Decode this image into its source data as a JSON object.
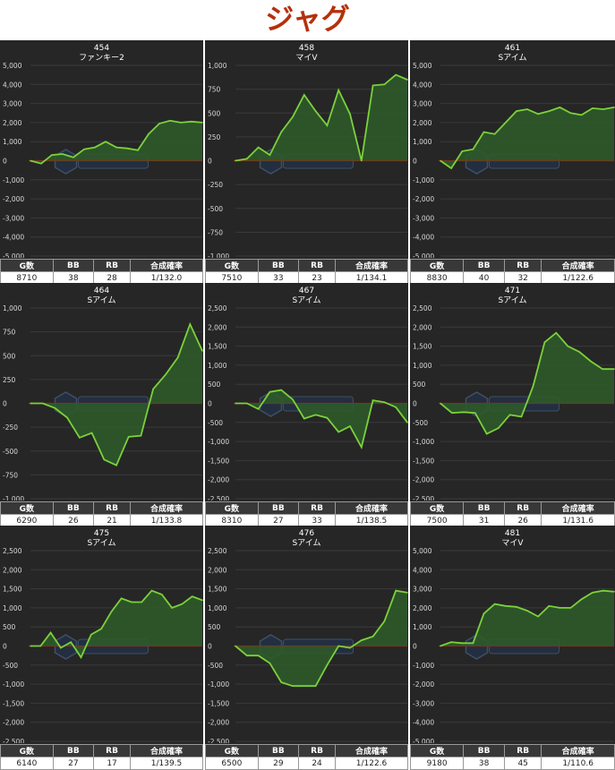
{
  "page": {
    "title": "ジャグ"
  },
  "table_headers": [
    "G数",
    "BB",
    "RB",
    "合成確率"
  ],
  "colors": {
    "line": "#7bd23a",
    "fill": "#2f5a2a",
    "zero": "#a32014",
    "grid": "#3a3a3a",
    "panel_bg": "#262626"
  },
  "chart_data": [
    {
      "type": "area",
      "title": "454",
      "subtitle": "ファンキー2",
      "ylim": [
        -5000,
        5000
      ],
      "yticks": [
        5000,
        4000,
        3000,
        2000,
        1000,
        0,
        -1000,
        -2000,
        -3000,
        -4000,
        -5000
      ],
      "x": [
        0,
        1,
        2,
        3,
        4,
        5,
        6,
        7,
        8,
        9,
        10,
        11,
        12,
        13,
        14,
        15,
        16
      ],
      "values": [
        0,
        -150,
        300,
        350,
        180,
        600,
        700,
        1000,
        700,
        650,
        550,
        1400,
        1950,
        2100,
        2000,
        2050,
        2000
      ],
      "stats": [
        "8710",
        "38",
        "28",
        "1/132.0"
      ]
    },
    {
      "type": "area",
      "title": "458",
      "subtitle": "マイV",
      "ylim": [
        -1000,
        1000
      ],
      "yticks": [
        1000,
        750,
        500,
        250,
        0,
        -250,
        -500,
        -750,
        -1000
      ],
      "x": [
        0,
        1,
        2,
        3,
        4,
        5,
        6,
        7,
        8,
        9,
        10,
        11,
        12,
        13,
        14,
        15
      ],
      "values": [
        0,
        20,
        140,
        60,
        300,
        460,
        690,
        520,
        370,
        740,
        490,
        0,
        790,
        800,
        900,
        850
      ],
      "stats": [
        "7510",
        "33",
        "23",
        "1/134.1"
      ]
    },
    {
      "type": "area",
      "title": "461",
      "subtitle": "Sアイム",
      "ylim": [
        -5000,
        5000
      ],
      "yticks": [
        5000,
        4000,
        3000,
        2000,
        1000,
        0,
        -1000,
        -2000,
        -3000,
        -4000,
        -5000
      ],
      "x": [
        0,
        1,
        2,
        3,
        4,
        5,
        6,
        7,
        8,
        9,
        10,
        11,
        12,
        13,
        14,
        15,
        16
      ],
      "values": [
        0,
        -400,
        500,
        600,
        1500,
        1400,
        2000,
        2600,
        2700,
        2450,
        2600,
        2800,
        2500,
        2400,
        2750,
        2700,
        2800
      ],
      "stats": [
        "8830",
        "40",
        "32",
        "1/122.6"
      ]
    },
    {
      "type": "area",
      "title": "464",
      "subtitle": "Sアイム",
      "ylim": [
        -1000,
        1000
      ],
      "yticks": [
        1000,
        750,
        500,
        250,
        0,
        -250,
        -500,
        -750,
        -1000
      ],
      "x": [
        0,
        1,
        2,
        3,
        4,
        5,
        6,
        7,
        8,
        9,
        10,
        11,
        12,
        13,
        14
      ],
      "values": [
        0,
        0,
        -50,
        -150,
        -360,
        -310,
        -590,
        -650,
        -350,
        -340,
        150,
        300,
        480,
        830,
        550
      ],
      "stats": [
        "6290",
        "26",
        "21",
        "1/133.8"
      ]
    },
    {
      "type": "area",
      "title": "467",
      "subtitle": "Sアイム",
      "ylim": [
        -2500,
        2500
      ],
      "yticks": [
        2500,
        2000,
        1500,
        1000,
        500,
        0,
        -500,
        -1000,
        -1500,
        -2000,
        -2500
      ],
      "x": [
        0,
        1,
        2,
        3,
        4,
        5,
        6,
        7,
        8,
        9,
        10,
        11,
        12,
        13,
        14,
        15
      ],
      "values": [
        0,
        0,
        -150,
        300,
        350,
        100,
        -400,
        -300,
        -380,
        -750,
        -600,
        -1150,
        80,
        30,
        -100,
        -500
      ],
      "stats": [
        "8310",
        "27",
        "33",
        "1/138.5"
      ]
    },
    {
      "type": "area",
      "title": "471",
      "subtitle": "Sアイム",
      "ylim": [
        -2500,
        2500
      ],
      "yticks": [
        2500,
        2000,
        1500,
        1000,
        500,
        0,
        -500,
        -1000,
        -1500,
        -2000,
        -2500
      ],
      "x": [
        0,
        1,
        2,
        3,
        4,
        5,
        6,
        7,
        8,
        9,
        10,
        11,
        12,
        13,
        14,
        15
      ],
      "values": [
        0,
        -250,
        -230,
        -250,
        -800,
        -650,
        -300,
        -350,
        450,
        1600,
        1850,
        1500,
        1350,
        1100,
        900,
        900
      ],
      "stats": [
        "7500",
        "31",
        "26",
        "1/131.6"
      ]
    },
    {
      "type": "area",
      "title": "475",
      "subtitle": "Sアイム",
      "ylim": [
        -2500,
        2500
      ],
      "yticks": [
        2500,
        2000,
        1500,
        1000,
        500,
        0,
        -500,
        -1000,
        -1500,
        -2000,
        -2500
      ],
      "x": [
        0,
        1,
        2,
        3,
        4,
        5,
        6,
        7,
        8,
        9,
        10,
        11,
        12,
        13,
        14,
        15,
        16,
        17
      ],
      "values": [
        0,
        0,
        350,
        -50,
        100,
        -300,
        300,
        450,
        900,
        1250,
        1150,
        1150,
        1450,
        1350,
        1000,
        1100,
        1300,
        1200
      ],
      "stats": [
        "6140",
        "27",
        "17",
        "1/139.5"
      ]
    },
    {
      "type": "area",
      "title": "476",
      "subtitle": "Sアイム",
      "ylim": [
        -2500,
        2500
      ],
      "yticks": [
        2500,
        2000,
        1500,
        1000,
        500,
        0,
        -500,
        -1000,
        -1500,
        -2000,
        -2500
      ],
      "x": [
        0,
        1,
        2,
        3,
        4,
        5,
        6,
        7,
        8,
        9,
        10,
        11,
        12,
        13,
        14,
        15
      ],
      "values": [
        0,
        -250,
        -250,
        -450,
        -950,
        -1050,
        -1050,
        -1050,
        -500,
        0,
        -50,
        150,
        250,
        650,
        1450,
        1400
      ],
      "stats": [
        "6500",
        "29",
        "24",
        "1/122.6"
      ]
    },
    {
      "type": "area",
      "title": "481",
      "subtitle": "マイV",
      "ylim": [
        -5000,
        5000
      ],
      "yticks": [
        5000,
        4000,
        3000,
        2000,
        1000,
        0,
        -1000,
        -2000,
        -3000,
        -4000,
        -5000
      ],
      "x": [
        0,
        1,
        2,
        3,
        4,
        5,
        6,
        7,
        8,
        9,
        10,
        11,
        12,
        13,
        14,
        15,
        16
      ],
      "values": [
        0,
        200,
        150,
        150,
        1700,
        2200,
        2100,
        2050,
        1850,
        1550,
        2100,
        2000,
        2000,
        2450,
        2800,
        2900,
        2850
      ],
      "stats": [
        "9180",
        "38",
        "45",
        "1/110.6"
      ]
    }
  ]
}
